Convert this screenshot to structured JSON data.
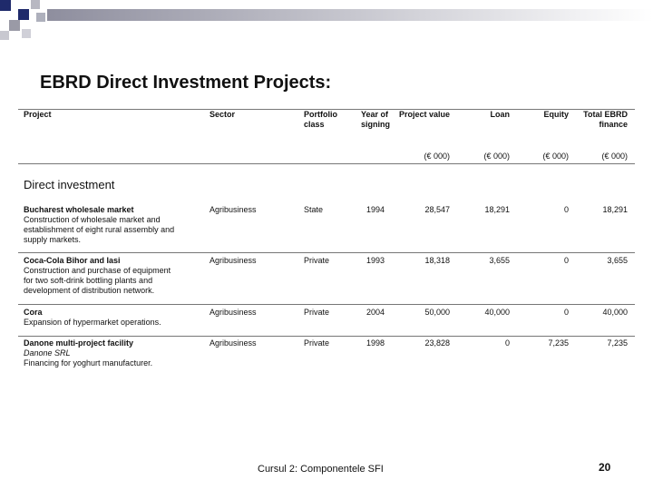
{
  "title": "EBRD Direct Investment Projects:",
  "table": {
    "headers": [
      "Project",
      "Sector",
      "Portfolio class",
      "Year of signing",
      "Project value",
      "Loan",
      "Equity",
      "Total EBRD finance"
    ],
    "units": [
      "(€ 000)",
      "(€ 000)",
      "(€ 000)",
      "(€ 000)"
    ],
    "section": "Direct investment",
    "rows": [
      {
        "name": "Bucharest wholesale market",
        "subname": null,
        "description": [
          "Construction of wholesale market and",
          "establishment of eight rural assembly and",
          "supply markets."
        ],
        "sector": "Agribusiness",
        "class": "State",
        "year": "1994",
        "value": "28,547",
        "loan": "18,291",
        "equity": "0",
        "total": "18,291"
      },
      {
        "name": "Coca-Cola Bihor and Iasi",
        "subname": null,
        "description": [
          "Construction and purchase of equipment",
          "for two soft-drink bottling plants and",
          "development of distribution network."
        ],
        "sector": "Agribusiness",
        "class": "Private",
        "year": "1993",
        "value": "18,318",
        "loan": "3,655",
        "equity": "0",
        "total": "3,655"
      },
      {
        "name": "Cora",
        "subname": null,
        "description": [
          "Expansion of hypermarket operations."
        ],
        "sector": "Agribusiness",
        "class": "Private",
        "year": "2004",
        "value": "50,000",
        "loan": "40,000",
        "equity": "0",
        "total": "40,000"
      },
      {
        "name": "Danone multi-project facility",
        "subname": "Danone SRL",
        "description": [
          "Financing for yoghurt manufacturer."
        ],
        "sector": "Agribusiness",
        "class": "Private",
        "year": "1998",
        "value": "23,828",
        "loan": "0",
        "equity": "7,235",
        "total": "7,235"
      }
    ]
  },
  "footer": {
    "text": "Cursul 2: Componentele SFI",
    "page": "20"
  }
}
